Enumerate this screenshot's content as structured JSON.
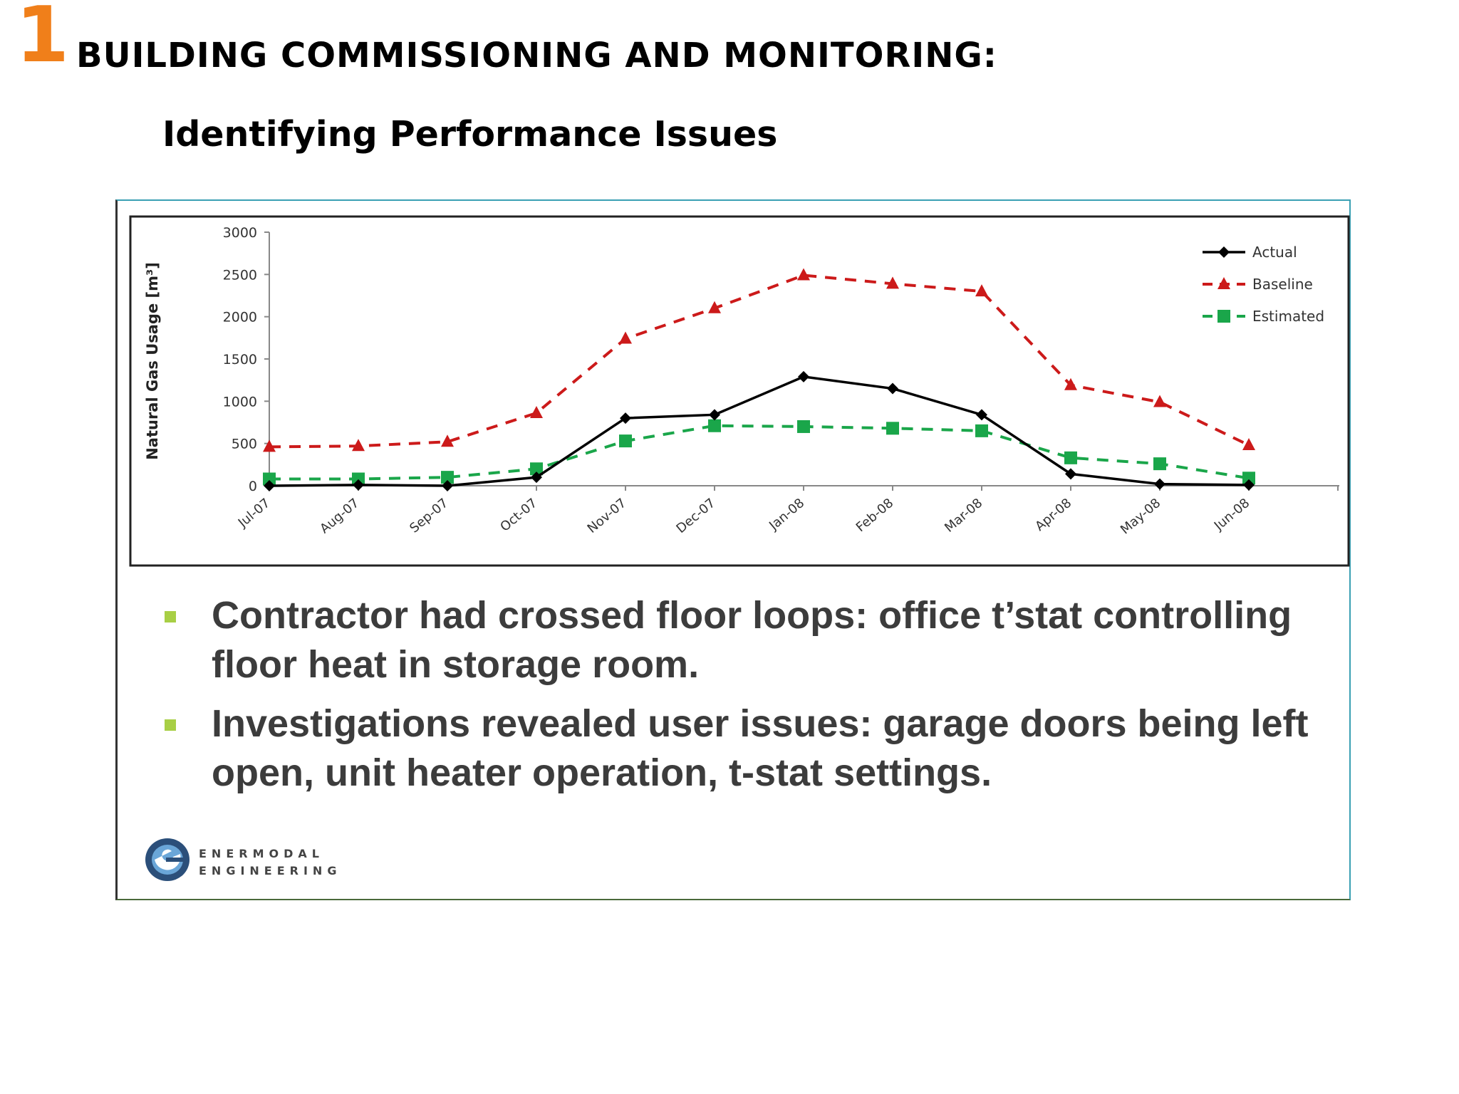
{
  "slide": {
    "number": "1",
    "title": "BUILDING COMMISSIONING AND MONITORING:",
    "subtitle": "Identifying Performance Issues"
  },
  "bullets": [
    "Contractor had crossed floor loops: office t’stat controlling floor heat in storage room.",
    "Investigations revealed user issues: garage doors being left open, unit heater operation, t-stat settings."
  ],
  "logo": {
    "line1": "ENERMODAL",
    "line2": "ENGINEERING"
  },
  "chart_data": {
    "type": "line",
    "title": "",
    "xlabel": "",
    "ylabel": "Natural Gas Usage [m³]",
    "ylim": [
      0,
      3000
    ],
    "yticks": [
      0,
      500,
      1000,
      1500,
      2000,
      2500,
      3000
    ],
    "categories": [
      "Jul-07",
      "Aug-07",
      "Sep-07",
      "Oct-07",
      "Nov-07",
      "Dec-07",
      "Jan-08",
      "Feb-08",
      "Mar-08",
      "Apr-08",
      "May-08",
      "Jun-08"
    ],
    "grid": false,
    "legend_position": "top-right",
    "series": [
      {
        "name": "Actual",
        "color": "#000000",
        "marker": "diamond",
        "dash": "solid",
        "values": [
          0,
          10,
          0,
          100,
          800,
          840,
          1290,
          1150,
          840,
          140,
          20,
          10
        ]
      },
      {
        "name": "Baseline",
        "color": "#cc1a1a",
        "marker": "triangle",
        "dash": "dashed",
        "values": [
          460,
          470,
          520,
          860,
          1740,
          2100,
          2490,
          2390,
          2300,
          1190,
          990,
          480
        ]
      },
      {
        "name": "Estimated",
        "color": "#1aa64a",
        "marker": "square",
        "dash": "dashed",
        "values": [
          80,
          80,
          100,
          200,
          530,
          710,
          700,
          680,
          650,
          330,
          260,
          90
        ]
      }
    ]
  }
}
